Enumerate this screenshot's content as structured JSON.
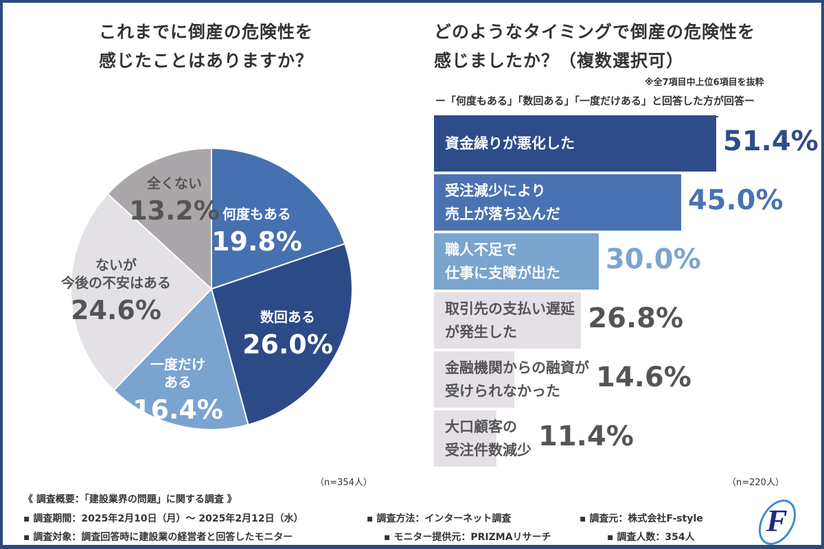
{
  "left": {
    "title": "これまでに倒産の危険性を\n感じたことはありますか？",
    "n": "（n=354人）"
  },
  "right": {
    "title": "どのようなタイミングで倒産の危険性を\n感じましたか？（複数選択可）",
    "note": "※全7項目中上位6項目を抜粋",
    "subtitle": "ー「何度もある」「数回ある」「一度だけある」と回答した方が回答ー",
    "n": "（n=220人）"
  },
  "chart_data": [
    {
      "type": "pie",
      "title": "これまでに倒産の危険性を感じたことはありますか？",
      "slices": [
        {
          "label": "何度もある",
          "value": 19.8,
          "display": "19.8%",
          "color": "#4670b0",
          "text_color": "#ffffff"
        },
        {
          "label": "数回ある",
          "value": 26.0,
          "display": "26.0%",
          "color": "#2c4a86",
          "text_color": "#ffffff"
        },
        {
          "label": "一度だけ\nある",
          "value": 16.4,
          "display": "16.4%",
          "color": "#7ba3cf",
          "text_color": "#ffffff"
        },
        {
          "label": "ないが\n今後の不安はある",
          "value": 24.6,
          "display": "24.6%",
          "color": "#e4e1e6",
          "text_color": "#555555"
        },
        {
          "label": "全くない",
          "value": 13.2,
          "display": "13.2%",
          "color": "#aaa6a9",
          "text_color": "#555555"
        }
      ]
    },
    {
      "type": "bar",
      "orientation": "horizontal",
      "title": "どのようなタイミングで倒産の危険性を感じましたか？（複数選択可）",
      "xlim": [
        0,
        51.4
      ],
      "categories": [
        "資金繰りが悪化した",
        "受注減少により\n売上が落ち込んだ",
        "職人不足で\n仕事に支障が出た",
        "取引先の支払い遅延\nが発生した",
        "金融機関からの融資が\n受けられなかった",
        "大口顧客の\n受注件数減少"
      ],
      "values": [
        51.4,
        45.0,
        30.0,
        26.8,
        14.6,
        11.4
      ],
      "display": [
        "51.4%",
        "45.0%",
        "30.0%",
        "26.8%",
        "14.6%",
        "11.4%"
      ],
      "colors": [
        "#2e4c8a",
        "#4a72b2",
        "#7ba4cf",
        "#e4e0e6",
        "#e4e0e6",
        "#e4e0e6"
      ],
      "label_colors": [
        "#ffffff",
        "#ffffff",
        "#ffffff",
        "#555555",
        "#555555",
        "#555555"
      ],
      "value_colors": [
        "#2e4c8a",
        "#4a72b2",
        "#7ba4cf",
        "#555555",
        "#555555",
        "#555555"
      ]
    }
  ],
  "footer": {
    "heading": "《 調査概要：「建設業界の問題」に関する調査 》",
    "items": [
      "▪ 調査期間：2025年2月10日（月）～ 2025年2月12日（水）",
      "▪ 調査方法：インターネット調査",
      "▪ 調査元：株式会社F-style",
      "▪ 調査対象：調査回答時に建設業の経営者と回答したモニター",
      "▪ モニター提供元：PRIZMAリサーチ",
      "▪ 調査人数：354人"
    ],
    "logo_text": "F-style"
  }
}
